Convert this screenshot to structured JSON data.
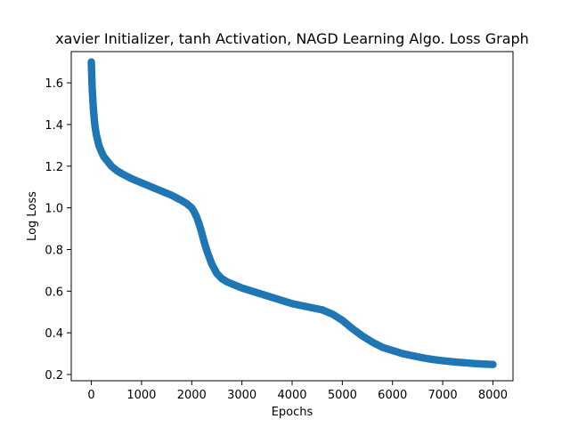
{
  "chart_data": {
    "type": "scatter",
    "title": "xavier Initializer, tanh Activation, NAGD Learning Algo. Loss Graph",
    "xlabel": "Epochs",
    "ylabel": "Log Loss",
    "xlim": [
      -400,
      8400
    ],
    "ylim": [
      0.17,
      1.75
    ],
    "xticks": [
      "0",
      "1000",
      "2000",
      "3000",
      "4000",
      "5000",
      "6000",
      "7000",
      "8000"
    ],
    "yticks": [
      "0.2",
      "0.4",
      "0.6",
      "0.8",
      "1.0",
      "1.2",
      "1.4",
      "1.6"
    ],
    "grid": false,
    "legend": "none",
    "color": "#1f77b4",
    "series": [
      {
        "x": [
          0,
          10,
          20,
          40,
          60,
          80,
          100,
          150,
          200,
          250,
          300,
          400,
          500,
          600,
          800,
          1000,
          1200,
          1400,
          1600,
          1800,
          1900,
          2000,
          2050,
          2100,
          2150,
          2200,
          2250,
          2300,
          2400,
          2500,
          2600,
          2700,
          2800,
          2900,
          3000,
          3200,
          3400,
          3600,
          3800,
          4000,
          4200,
          4400,
          4600,
          4800,
          4900,
          5000,
          5100,
          5200,
          5400,
          5600,
          5800,
          6000,
          6200,
          6400,
          6600,
          6800,
          7000,
          7200,
          7400,
          7600,
          7800,
          8000
        ],
        "y": [
          1.7,
          1.62,
          1.56,
          1.48,
          1.42,
          1.38,
          1.35,
          1.3,
          1.27,
          1.245,
          1.23,
          1.2,
          1.18,
          1.165,
          1.14,
          1.12,
          1.1,
          1.08,
          1.06,
          1.035,
          1.02,
          1.0,
          0.98,
          0.955,
          0.92,
          0.88,
          0.835,
          0.795,
          0.73,
          0.685,
          0.66,
          0.645,
          0.635,
          0.625,
          0.615,
          0.6,
          0.585,
          0.57,
          0.555,
          0.54,
          0.53,
          0.52,
          0.51,
          0.49,
          0.475,
          0.46,
          0.44,
          0.42,
          0.385,
          0.355,
          0.33,
          0.315,
          0.3,
          0.29,
          0.28,
          0.272,
          0.266,
          0.261,
          0.257,
          0.253,
          0.25,
          0.248
        ]
      }
    ]
  }
}
